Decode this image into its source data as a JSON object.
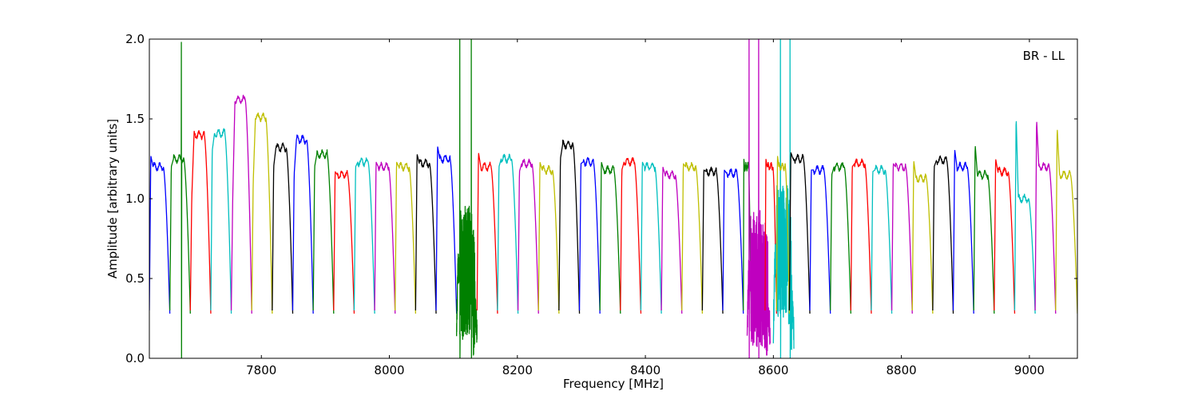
{
  "chart_data": {
    "type": "line",
    "title": "",
    "annotation": "BR - LL",
    "xlabel": "Frequency [MHz]",
    "ylabel": "Amplitude [arbitrary units]",
    "xlim": [
      7625,
      9075
    ],
    "ylim": [
      0.0,
      2.0
    ],
    "xticks": [
      7800,
      8000,
      8200,
      8400,
      8600,
      8800,
      9000
    ],
    "yticks": [
      0.0,
      0.5,
      1.0,
      1.5,
      2.0
    ],
    "xtick_labels": [
      "7800",
      "8000",
      "8200",
      "8400",
      "8600",
      "8800",
      "9000"
    ],
    "ytick_labels": [
      "0.0",
      "0.5",
      "1.0",
      "1.5",
      "2.0"
    ],
    "grid": false,
    "colors": {
      "blue": "#0000ff",
      "green": "#008000",
      "red": "#ff0000",
      "cyan": "#00bfbf",
      "magenta": "#bf00bf",
      "olive": "#bfbf00",
      "black": "#000000"
    },
    "channel_spacing_mhz": 32,
    "series": [
      {
        "color": "blue",
        "x_start": 7625,
        "x_end": 7657,
        "left_peak": 1.27,
        "plateau": 1.2
      },
      {
        "color": "green",
        "x_start": 7657,
        "x_end": 7689,
        "left_peak": 1.2,
        "plateau": 1.25,
        "spike": [
          [
            7675,
            1.98
          ]
        ]
      },
      {
        "color": "red",
        "x_start": 7689,
        "x_end": 7721,
        "left_peak": 1.0,
        "plateau": 1.4
      },
      {
        "color": "cyan",
        "x_start": 7721,
        "x_end": 7753,
        "left_peak": 1.3,
        "plateau": 1.41
      },
      {
        "color": "magenta",
        "x_start": 7753,
        "x_end": 7785,
        "left_peak": 1.0,
        "plateau": 1.62
      },
      {
        "color": "olive",
        "x_start": 7785,
        "x_end": 7817,
        "left_peak": 1.1,
        "plateau": 1.51
      },
      {
        "color": "black",
        "x_start": 7817,
        "x_end": 7849,
        "left_peak": 1.2,
        "plateau": 1.32
      },
      {
        "color": "blue",
        "x_start": 7849,
        "x_end": 7881,
        "left_peak": 1.15,
        "plateau": 1.37
      },
      {
        "color": "green",
        "x_start": 7881,
        "x_end": 7913,
        "left_peak": 1.2,
        "plateau": 1.28
      },
      {
        "color": "red",
        "x_start": 7913,
        "x_end": 7945,
        "left_peak": 1.17,
        "plateau": 1.15
      },
      {
        "color": "cyan",
        "x_start": 7945,
        "x_end": 7977,
        "left_peak": 1.2,
        "plateau": 1.23
      },
      {
        "color": "magenta",
        "x_start": 7977,
        "x_end": 8009,
        "left_peak": 1.23,
        "plateau": 1.2
      },
      {
        "color": "olive",
        "x_start": 8009,
        "x_end": 8041,
        "left_peak": 1.23,
        "plateau": 1.2
      },
      {
        "color": "black",
        "x_start": 8041,
        "x_end": 8073,
        "left_peak": 1.28,
        "plateau": 1.22
      },
      {
        "color": "blue",
        "x_start": 8073,
        "x_end": 8105,
        "left_peak": 1.33,
        "plateau": 1.25
      },
      {
        "color": "green",
        "x_start": 8105,
        "x_end": 8137,
        "left_peak": 1.05,
        "plateau": 1.0,
        "noisy": true,
        "spike": [
          [
            8110,
            2.0
          ],
          [
            8128,
            2.0
          ]
        ]
      },
      {
        "color": "red",
        "x_start": 8137,
        "x_end": 8169,
        "left_peak": 1.29,
        "plateau": 1.2
      },
      {
        "color": "cyan",
        "x_start": 8169,
        "x_end": 8201,
        "left_peak": 1.2,
        "plateau": 1.25
      },
      {
        "color": "magenta",
        "x_start": 8201,
        "x_end": 8233,
        "left_peak": 1.17,
        "plateau": 1.22
      },
      {
        "color": "olive",
        "x_start": 8233,
        "x_end": 8265,
        "left_peak": 1.23,
        "plateau": 1.18
      },
      {
        "color": "black",
        "x_start": 8265,
        "x_end": 8297,
        "left_peak": 1.25,
        "plateau": 1.34
      },
      {
        "color": "blue",
        "x_start": 8297,
        "x_end": 8329,
        "left_peak": 1.22,
        "plateau": 1.23
      },
      {
        "color": "green",
        "x_start": 8329,
        "x_end": 8361,
        "left_peak": 1.23,
        "plateau": 1.18
      },
      {
        "color": "red",
        "x_start": 8361,
        "x_end": 8393,
        "left_peak": 1.18,
        "plateau": 1.23
      },
      {
        "color": "cyan",
        "x_start": 8393,
        "x_end": 8425,
        "left_peak": 1.23,
        "plateau": 1.2
      },
      {
        "color": "magenta",
        "x_start": 8425,
        "x_end": 8457,
        "left_peak": 1.2,
        "plateau": 1.15
      },
      {
        "color": "olive",
        "x_start": 8457,
        "x_end": 8489,
        "left_peak": 1.22,
        "plateau": 1.2
      },
      {
        "color": "black",
        "x_start": 8489,
        "x_end": 8521,
        "left_peak": 1.18,
        "plateau": 1.17
      },
      {
        "color": "blue",
        "x_start": 8521,
        "x_end": 8553,
        "left_peak": 1.18,
        "plateau": 1.16
      },
      {
        "color": "green",
        "x_start": 8553,
        "x_end": 8565,
        "left_peak": 1.25,
        "plateau": 1.2
      },
      {
        "color": "magenta",
        "x_start": 8559,
        "x_end": 8595,
        "left_peak": 1.0,
        "plateau": 0.9,
        "noisy": true,
        "spike": [
          [
            8562,
            2.0
          ],
          [
            8577,
            2.0
          ]
        ]
      },
      {
        "color": "red",
        "x_start": 8587,
        "x_end": 8605,
        "left_peak": 1.25,
        "plateau": 1.2
      },
      {
        "color": "cyan",
        "x_start": 8600,
        "x_end": 8632,
        "left_peak": 1.1,
        "plateau": 1.2,
        "noisy": true,
        "spike": [
          [
            8611,
            2.0
          ],
          [
            8626,
            2.0
          ]
        ]
      },
      {
        "color": "olive",
        "x_start": 8605,
        "x_end": 8625,
        "left_peak": 1.27,
        "plateau": 1.2
      },
      {
        "color": "black",
        "x_start": 8625,
        "x_end": 8657,
        "left_peak": 1.29,
        "plateau": 1.25
      },
      {
        "color": "blue",
        "x_start": 8657,
        "x_end": 8689,
        "left_peak": 1.18,
        "plateau": 1.18
      },
      {
        "color": "green",
        "x_start": 8689,
        "x_end": 8721,
        "left_peak": 1.15,
        "plateau": 1.2
      },
      {
        "color": "red",
        "x_start": 8721,
        "x_end": 8753,
        "left_peak": 1.2,
        "plateau": 1.22
      },
      {
        "color": "cyan",
        "x_start": 8753,
        "x_end": 8785,
        "left_peak": 1.17,
        "plateau": 1.18
      },
      {
        "color": "magenta",
        "x_start": 8785,
        "x_end": 8817,
        "left_peak": 1.22,
        "plateau": 1.2
      },
      {
        "color": "olive",
        "x_start": 8817,
        "x_end": 8849,
        "left_peak": 1.24,
        "plateau": 1.13
      },
      {
        "color": "black",
        "x_start": 8849,
        "x_end": 8881,
        "left_peak": 1.2,
        "plateau": 1.24
      },
      {
        "color": "blue",
        "x_start": 8881,
        "x_end": 8913,
        "left_peak": 1.31,
        "plateau": 1.2
      },
      {
        "color": "green",
        "x_start": 8913,
        "x_end": 8945,
        "left_peak": 1.34,
        "plateau": 1.15
      },
      {
        "color": "red",
        "x_start": 8945,
        "x_end": 8977,
        "left_peak": 1.25,
        "plateau": 1.17
      },
      {
        "color": "cyan",
        "x_start": 8977,
        "x_end": 9009,
        "left_peak": 1.52,
        "plateau": 1.0
      },
      {
        "color": "magenta",
        "x_start": 9009,
        "x_end": 9041,
        "left_peak": 1.5,
        "plateau": 1.2
      },
      {
        "color": "olive",
        "x_start": 9041,
        "x_end": 9075,
        "left_peak": 1.45,
        "plateau": 1.15
      }
    ]
  }
}
